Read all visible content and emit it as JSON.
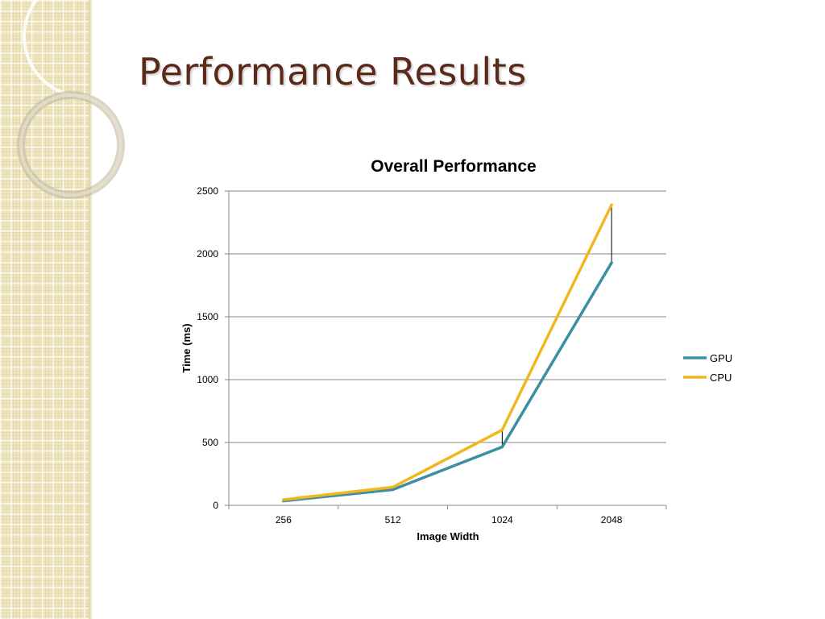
{
  "slide": {
    "title": "Performance Results"
  },
  "chart_data": {
    "type": "line",
    "title": "Overall Performance",
    "xlabel": "Image Width",
    "ylabel": "Time (ms)",
    "categories": [
      "256",
      "512",
      "1024",
      "2048"
    ],
    "ylim": [
      0,
      2500
    ],
    "yticks": [
      0,
      500,
      1000,
      1500,
      2000,
      2500
    ],
    "grid": true,
    "legend_position": "right",
    "drop_lines": true,
    "series": [
      {
        "name": "GPU",
        "values": [
          35,
          125,
          465,
          1930
        ],
        "color": "#3b8fa5"
      },
      {
        "name": "CPU",
        "values": [
          45,
          145,
          600,
          2390
        ],
        "color": "#f0b81e"
      }
    ]
  }
}
